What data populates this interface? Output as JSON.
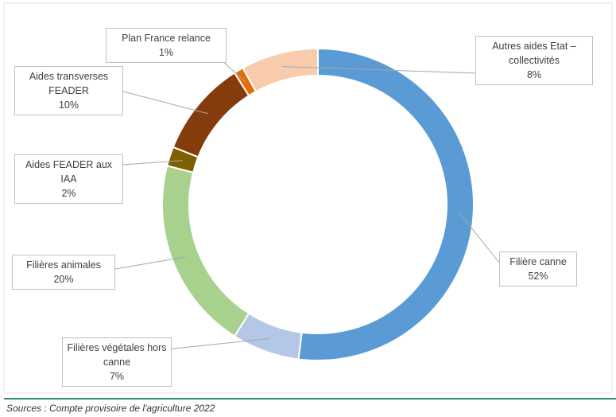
{
  "chart_data": {
    "type": "donut",
    "categories": [
      "Filière canne",
      "Filières végétales hors canne",
      "Filières animales",
      "Aides FEADER aux IAA",
      "Aides transverses FEADER",
      "Plan France relance",
      "Autres aides Etat – collectivités"
    ],
    "values": [
      52,
      7,
      20,
      2,
      10,
      1,
      8
    ],
    "value_labels": [
      "52%",
      "7%",
      "20%",
      "2%",
      "10%",
      "1%",
      "8%"
    ],
    "colors": [
      "#5b9bd5",
      "#b4c7e7",
      "#a9d18e",
      "#7f6000",
      "#843c0c",
      "#e46c0a",
      "#f8cbad"
    ],
    "source": "Sources : Compte provisoire de l'agriculture  2022"
  }
}
